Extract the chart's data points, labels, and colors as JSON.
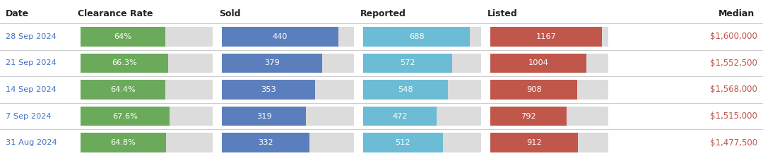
{
  "headers": [
    "Date",
    "Clearance Rate",
    "Sold",
    "Reported",
    "Listed",
    "Median"
  ],
  "rows": [
    {
      "date": "28 Sep 2024",
      "clearance_rate": 64.0,
      "clearance_label": "64%",
      "sold": 440,
      "reported": 688,
      "listed": 1167,
      "median": "$1,600,000"
    },
    {
      "date": "21 Sep 2024",
      "clearance_rate": 66.3,
      "clearance_label": "66.3%",
      "sold": 379,
      "reported": 572,
      "listed": 1004,
      "median": "$1,552,500"
    },
    {
      "date": "14 Sep 2024",
      "clearance_rate": 64.4,
      "clearance_label": "64.4%",
      "sold": 353,
      "reported": 548,
      "listed": 908,
      "median": "$1,568,000"
    },
    {
      "date": "7 Sep 2024",
      "clearance_rate": 67.6,
      "clearance_label": "67.6%",
      "sold": 319,
      "reported": 472,
      "listed": 792,
      "median": "$1,515,000"
    },
    {
      "date": "31 Aug 2024",
      "clearance_rate": 64.8,
      "clearance_label": "64.8%",
      "sold": 332,
      "reported": 512,
      "listed": 912,
      "median": "$1,477,500"
    }
  ],
  "colors": {
    "background": "#ffffff",
    "header_text": "#222222",
    "date_text": "#4472c4",
    "separator": "#cccccc",
    "clearance_bar": "#6aaa5a",
    "clearance_bg": "#dcdcdc",
    "sold_bar": "#5b7fbc",
    "sold_bg": "#dcdcdc",
    "reported_bar": "#6bbcd4",
    "reported_bg": "#dcdcdc",
    "listed_bar": "#c0574a",
    "listed_bg": "#dcdcdc",
    "bar_text": "#ffffff",
    "median_text": "#c0574a"
  },
  "clearance_max": 100,
  "sold_max": 500,
  "reported_max": 760,
  "listed_max": 1230,
  "header_fontsize": 9,
  "data_fontsize": 8.2,
  "median_fontsize": 8.5
}
